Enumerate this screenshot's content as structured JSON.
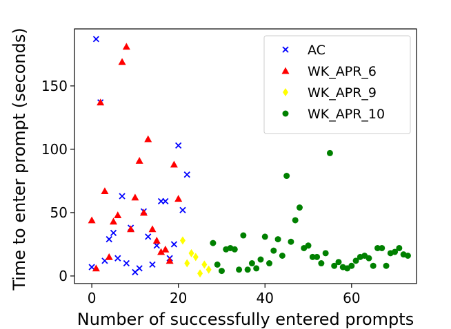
{
  "chart_data": {
    "type": "scatter",
    "xlabel": "Number of successfully entered prompts",
    "ylabel": "Time to enter prompt (seconds)",
    "xlim": [
      -4,
      75
    ],
    "ylim": [
      -6,
      195
    ],
    "xticks": [
      0,
      20,
      40,
      60
    ],
    "yticks": [
      0,
      50,
      100,
      150
    ],
    "xtick_labels": [
      "0",
      "20",
      "40",
      "60"
    ],
    "ytick_labels": [
      "0",
      "50",
      "100",
      "150"
    ],
    "grid": false,
    "legend_position": "top-right",
    "series": [
      {
        "name": "AC",
        "marker": "x",
        "color": "#0000ff",
        "x": [
          0,
          1,
          2,
          3,
          4,
          5,
          6,
          7,
          8,
          9,
          10,
          11,
          12,
          13,
          14,
          15,
          16,
          17,
          18,
          19,
          20,
          21,
          22
        ],
        "y": [
          7,
          187,
          137,
          12,
          29,
          34,
          14,
          63,
          10,
          38,
          3,
          6,
          51,
          31,
          9,
          24,
          59,
          59,
          14,
          25,
          103,
          52,
          80
        ]
      },
      {
        "name": "WK_APR_6",
        "marker": "triangle",
        "color": "#ff0000",
        "x": [
          0,
          1,
          2,
          3,
          4,
          5,
          6,
          7,
          8,
          9,
          10,
          11,
          12,
          13,
          14,
          15,
          16,
          17,
          18,
          19,
          20
        ],
        "y": [
          44,
          6,
          137,
          67,
          15,
          43,
          48,
          169,
          181,
          37,
          62,
          91,
          50,
          108,
          37,
          28,
          19,
          21,
          12,
          88,
          61
        ]
      },
      {
        "name": "WK_APR_9",
        "marker": "diamond",
        "color": "#ffff00",
        "x": [
          21,
          22,
          23,
          24,
          25,
          26,
          27
        ],
        "y": [
          28,
          10,
          18,
          15,
          2,
          9,
          5
        ]
      },
      {
        "name": "WK_APR_10",
        "marker": "circle",
        "color": "#008000",
        "x": [
          28,
          29,
          30,
          31,
          32,
          33,
          34,
          35,
          36,
          37,
          38,
          39,
          40,
          41,
          42,
          43,
          44,
          45,
          46,
          47,
          48,
          49,
          50,
          51,
          52,
          53,
          54,
          55,
          56,
          57,
          58,
          59,
          60,
          61,
          62,
          63,
          64,
          65,
          66,
          67,
          68,
          69,
          70,
          71,
          72,
          73
        ],
        "y": [
          26,
          9,
          4,
          21,
          22,
          21,
          5,
          32,
          5,
          10,
          6,
          13,
          31,
          10,
          20,
          29,
          16,
          79,
          27,
          44,
          54,
          22,
          24,
          15,
          15,
          10,
          18,
          97,
          8,
          11,
          7,
          6,
          8,
          12,
          15,
          16,
          14,
          8,
          22,
          22,
          8,
          18,
          19,
          22,
          17,
          16
        ]
      }
    ]
  }
}
